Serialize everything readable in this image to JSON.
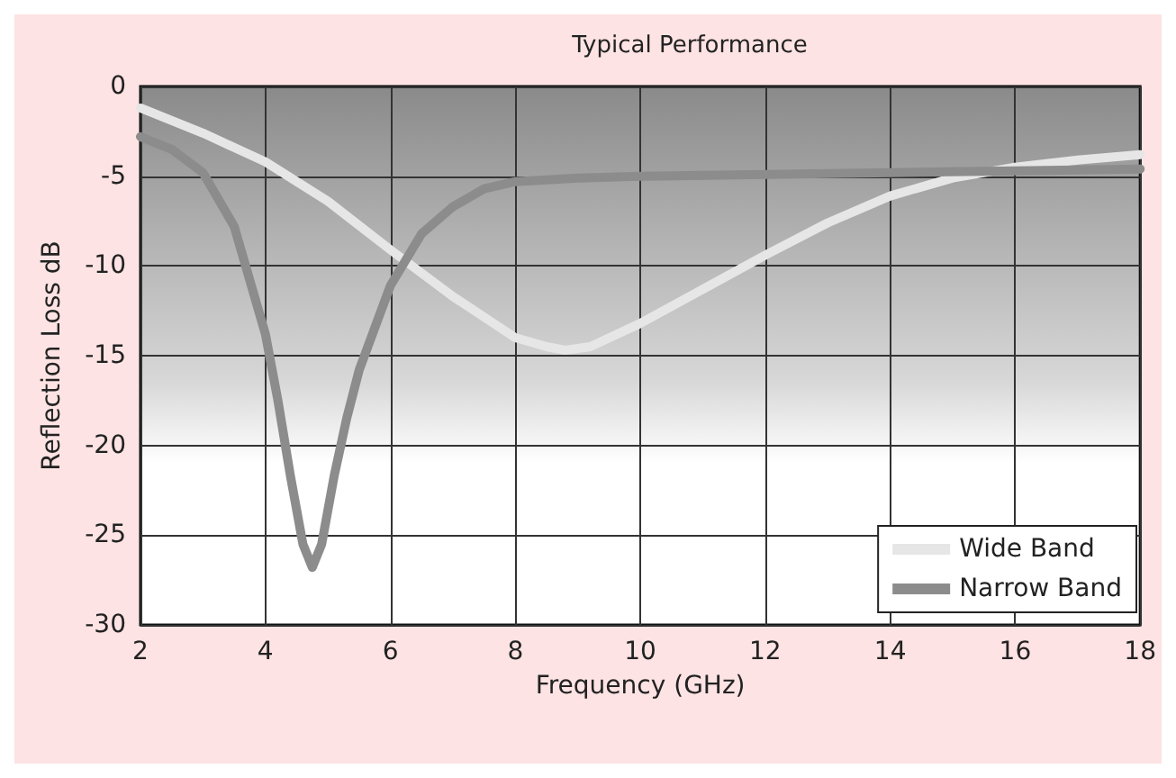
{
  "chart_data": {
    "type": "line",
    "title": "Typical Performance",
    "xlabel": "Frequency (GHz)",
    "ylabel": "Reflection Loss dB",
    "xlim": [
      2,
      18
    ],
    "xticks": [
      2,
      4,
      6,
      8,
      10,
      12,
      14,
      16,
      18
    ],
    "ylim": [
      -30,
      0
    ],
    "yticks": [
      -30,
      -25,
      -20,
      -15,
      -10,
      -5,
      0
    ],
    "grid": true,
    "legend": "bottom right",
    "marker": "none",
    "line_style": "solid",
    "series": [
      {
        "name": "Wide Band",
        "color": "#e6e6e6",
        "x": [
          2,
          3,
          4,
          5,
          6,
          7,
          8,
          8.5,
          8.8,
          9.2,
          10,
          11,
          12,
          13,
          14,
          15,
          16,
          17,
          18
        ],
        "values": [
          -1.2,
          -2.6,
          -4.2,
          -6.4,
          -9.1,
          -11.7,
          -14,
          -14.5,
          -14.7,
          -14.5,
          -13.2,
          -11.3,
          -9.4,
          -7.6,
          -6.1,
          -5.1,
          -4.5,
          -4.1,
          -3.8
        ]
      },
      {
        "name": "Narrow Band",
        "color": "#8c8c8c",
        "x": [
          2,
          2.5,
          3,
          3.5,
          4,
          4.2,
          4.4,
          4.6,
          4.75,
          4.9,
          5.1,
          5.3,
          5.5,
          6,
          6.5,
          7,
          7.5,
          8,
          9,
          10,
          12,
          14,
          16,
          18
        ],
        "values": [
          -2.8,
          -3.5,
          -4.8,
          -7.8,
          -13.8,
          -17.5,
          -21.7,
          -25.5,
          -26.8,
          -25.5,
          -21.7,
          -18.5,
          -15.8,
          -11.1,
          -8.2,
          -6.7,
          -5.7,
          -5.3,
          -5.1,
          -5,
          -4.9,
          -4.8,
          -4.7,
          -4.6
        ]
      }
    ]
  }
}
